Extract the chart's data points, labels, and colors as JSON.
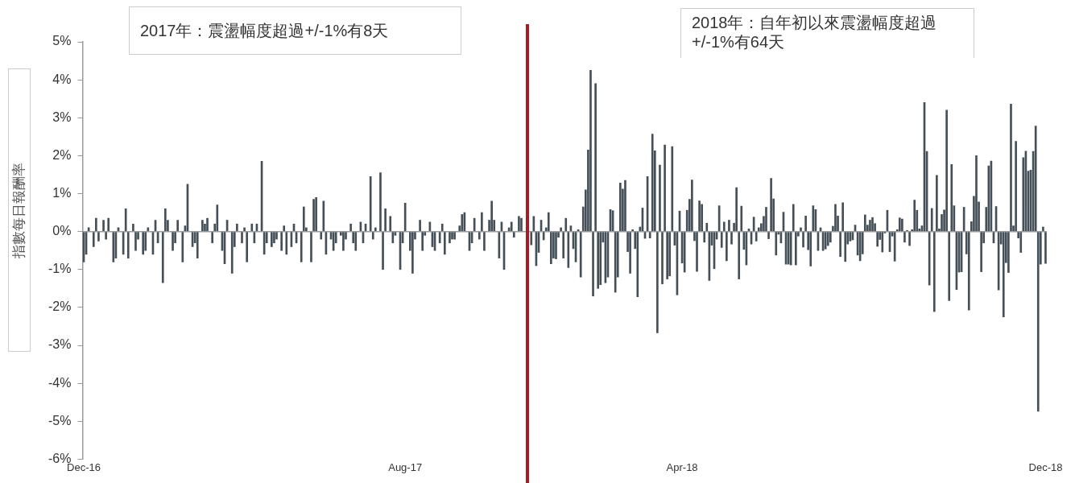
{
  "chart_data": {
    "type": "bar",
    "ylabel": "指數每日報酬率",
    "annotations": [
      "2017年：震盪幅度超過+/-1%有8天",
      "2018年：自年初以來震盪幅度超過+/-1%有64天"
    ],
    "categories": [
      "Dec-16",
      null,
      null,
      null,
      null,
      null,
      null,
      null,
      null,
      null,
      null,
      null,
      null,
      null,
      null,
      null,
      null,
      null,
      null,
      null,
      null,
      null,
      null,
      null,
      null,
      null,
      null,
      null,
      null,
      null,
      null,
      null,
      null,
      null,
      null,
      null,
      null,
      null,
      null,
      null,
      null,
      null,
      null,
      null,
      null,
      null,
      null,
      null,
      null,
      null,
      null,
      null,
      null,
      null,
      null,
      null,
      null,
      null,
      null,
      null,
      null,
      null,
      null,
      null,
      null,
      null,
      null,
      null,
      null,
      null,
      null,
      null,
      null,
      null,
      null,
      null,
      null,
      null,
      null,
      null,
      null,
      null,
      null,
      null,
      null,
      null,
      null,
      null,
      null,
      null,
      null,
      null,
      null,
      null,
      null,
      null,
      null,
      null,
      null,
      null,
      null,
      null,
      null,
      null,
      null,
      null,
      null,
      null,
      null,
      null,
      null,
      null,
      null,
      null,
      null,
      null,
      null,
      null,
      null,
      null,
      null,
      null,
      null,
      null,
      null,
      null,
      null,
      null,
      null,
      null,
      "Aug-17",
      null,
      null,
      null,
      null,
      null,
      null,
      null,
      null,
      null,
      null,
      null,
      null,
      null,
      null,
      null,
      null,
      null,
      null,
      null,
      null,
      null,
      null,
      null,
      null,
      null,
      null,
      null,
      null,
      null,
      null,
      null,
      null,
      null,
      null,
      null,
      null,
      null,
      null,
      null,
      null,
      null,
      null,
      null,
      null,
      null,
      null,
      null,
      null,
      null,
      null,
      null,
      null,
      null,
      null,
      null,
      null,
      null,
      null,
      null,
      null,
      null,
      null,
      null,
      null,
      null,
      null,
      null,
      null,
      null,
      null,
      null,
      null,
      null,
      null,
      null,
      null,
      null,
      null,
      null,
      null,
      null,
      null,
      null,
      null,
      null,
      null,
      null,
      null,
      null,
      null,
      null,
      null,
      null,
      null,
      null,
      null,
      null,
      null,
      null,
      null,
      null,
      null,
      null,
      null,
      null,
      null,
      null,
      null,
      null,
      null,
      null,
      "Apr-18",
      null,
      null,
      null,
      null,
      null,
      null,
      null,
      null,
      null,
      null,
      null,
      null,
      null,
      null,
      null,
      null,
      null,
      null,
      null,
      null,
      null,
      null,
      null,
      null,
      null,
      null,
      null,
      null,
      null,
      null,
      null,
      null,
      null,
      null,
      null,
      null,
      null,
      null,
      null,
      null,
      null,
      null,
      null,
      null,
      null,
      null,
      null,
      null,
      null,
      null,
      null,
      null,
      null,
      null,
      null,
      null,
      null,
      null,
      null,
      null,
      null,
      null,
      null,
      null,
      null,
      null,
      null,
      null,
      null,
      null,
      null,
      null,
      null,
      null,
      null,
      null,
      null,
      null,
      null,
      null,
      null,
      null,
      null,
      null,
      null,
      null,
      null,
      null,
      null,
      null,
      null,
      null,
      null,
      null,
      null,
      null,
      null,
      null,
      null,
      null,
      null,
      null,
      null,
      null,
      null,
      null,
      null,
      null,
      null,
      null,
      null,
      null,
      null,
      null,
      null,
      null,
      null,
      null,
      null,
      null,
      null,
      null,
      null,
      null,
      null,
      null,
      null,
      null,
      null,
      null,
      null,
      null,
      null,
      null,
      null,
      null,
      null,
      null,
      null,
      null,
      null,
      null,
      null,
      null,
      null,
      null,
      "Dec-18"
    ],
    "ylim": [
      -6,
      5
    ],
    "yticks": [
      {
        "value": 5,
        "label": "5%"
      },
      {
        "value": 4,
        "label": "4%"
      },
      {
        "value": 3,
        "label": "3%"
      },
      {
        "value": 2,
        "label": "2%"
      },
      {
        "value": 1,
        "label": "1%"
      },
      {
        "value": 0,
        "label": "0%"
      },
      {
        "value": -1,
        "label": "-1%"
      },
      {
        "value": -2,
        "label": "-2%"
      },
      {
        "value": -3,
        "label": "-3%"
      },
      {
        "value": -4,
        "label": "-4%"
      },
      {
        "value": -5,
        "label": "-5%"
      },
      {
        "value": -6,
        "label": "-6%"
      }
    ],
    "ref_lines": [
      {
        "axis": "y",
        "value": 0,
        "color": "#9a9a9a"
      }
    ],
    "grid": false,
    "legend": false,
    "series": [
      {
        "color": "#454f57",
        "values": [
          -0.8,
          -0.6,
          0.1,
          null,
          -0.4,
          0.35,
          -0.25,
          null,
          0.3,
          -0.2,
          0.35,
          null,
          -0.8,
          -0.7,
          0.1,
          null,
          -0.6,
          0.6,
          -0.7,
          null,
          0.2,
          -0.5,
          -0.2,
          null,
          -0.6,
          -0.5,
          0.1,
          null,
          -0.6,
          0.3,
          -0.3,
          null,
          -1.35,
          0.6,
          0.3,
          null,
          -0.5,
          -0.3,
          0.3,
          null,
          -0.8,
          0.15,
          1.25,
          null,
          -0.4,
          -0.3,
          -0.7,
          null,
          0.3,
          0.2,
          0.35,
          null,
          -0.3,
          0.2,
          0.7,
          null,
          -0.5,
          -0.85,
          0.3,
          null,
          -1.1,
          -0.4,
          0.2,
          null,
          -0.3,
          0.1,
          -0.8,
          null,
          0.2,
          -0.3,
          0.2,
          null,
          1.85,
          -0.6,
          -0.3,
          null,
          -0.4,
          -0.3,
          -0.2,
          null,
          -0.5,
          0.15,
          -0.6,
          null,
          -0.4,
          0.2,
          -0.3,
          null,
          -0.8,
          0.65,
          0.1,
          null,
          -0.8,
          0.85,
          0.9,
          null,
          -0.2,
          0.8,
          -0.6,
          null,
          -0.2,
          -0.5,
          -0.3,
          null,
          -0.1,
          -0.5,
          -0.2,
          null,
          0.2,
          -0.3,
          -0.5,
          null,
          0.25,
          -0.3,
          0.2,
          null,
          1.45,
          -0.2,
          0.1,
          null,
          1.55,
          -1.0,
          0.6,
          null,
          0.4,
          -0.3,
          -0.1,
          null,
          -1.0,
          -0.3,
          0.75,
          null,
          -0.5,
          -1.1,
          -0.2,
          null,
          0.3,
          -0.5,
          -0.1,
          null,
          0.25,
          -0.4,
          -0.5,
          null,
          -0.3,
          0.2,
          -0.6,
          null,
          -0.3,
          -0.2,
          -0.2,
          null,
          0.15,
          0.45,
          0.5,
          null,
          -0.5,
          -0.3,
          0.35,
          null,
          -0.2,
          0.5,
          -0.5,
          null,
          0.3,
          0.8,
          0.3,
          null,
          -0.7,
          0.25,
          -1.0,
          null,
          0.1,
          0.25,
          -0.15,
          null,
          0.4,
          0.35,
          null,
          null,
          null,
          -0.35,
          0.4,
          -0.9,
          -0.55,
          0.3,
          -0.22,
          0.1,
          0.5,
          -0.85,
          -0.7,
          -0.72,
          -0.15,
          0.1,
          -0.7,
          0.35,
          -0.95,
          0.15,
          -0.45,
          -0.8,
          0.05,
          -1.2,
          0.65,
          1.1,
          2.15,
          4.25,
          -1.7,
          3.9,
          -1.5,
          -1.4,
          -0.28,
          -1.35,
          -1.2,
          0.58,
          0.55,
          -1.6,
          -1.2,
          1.28,
          1.12,
          1.35,
          -0.53,
          -1.1,
          0.05,
          -0.45,
          -1.72,
          0.12,
          0.62,
          -0.18,
          1.45,
          -0.17,
          2.57,
          2.13,
          -2.67,
          1.75,
          -1.38,
          2.28,
          -1.25,
          -1.17,
          2.24,
          -0.36,
          -1.67,
          0.54,
          -0.83,
          -1.07,
          0.56,
          0.85,
          1.36,
          -0.24,
          -1.05,
          0.81,
          0.72,
          -0.28,
          0.22,
          -1.29,
          -0.36,
          -0.98,
          -0.2,
          0.68,
          -0.42,
          0.25,
          -0.77,
          0.3,
          -0.33,
          0.22,
          1.16,
          -1.25,
          0.67,
          -0.47,
          -0.88,
          0.07,
          -0.33,
          0.38,
          -0.25,
          0.1,
          0.21,
          0.4,
          0.64,
          -0.19,
          1.4,
          0.86,
          -0.62,
          -0.07,
          -0.3,
          0.51,
          -0.86,
          -0.86,
          -0.88,
          0.72,
          -0.88,
          -0.12,
          0.1,
          -0.41,
          0.41,
          -0.48,
          -0.91,
          0.68,
          0.58,
          -0.5,
          0.1,
          -0.5,
          -0.46,
          -0.37,
          -0.28,
          0.14,
          0.72,
          0.41,
          -0.66,
          0.76,
          -0.79,
          -0.33,
          -0.25,
          -0.22,
          0.17,
          -0.62,
          -0.77,
          -0.59,
          0.44,
          0.17,
          0.3,
          0.37,
          0.21,
          -0.39,
          -0.21,
          -0.54,
          -0.04,
          0.56,
          -0.53,
          -0.12,
          -0.78,
          0.05,
          0.36,
          0.33,
          -0.28,
          0.03,
          -0.37,
          0.05,
          0.83,
          0.56,
          0.07,
          0.15,
          3.4,
          2.11,
          -1.41,
          0.61,
          -2.11,
          1.48,
          0.07,
          0.45,
          0.57,
          3.2,
          -1.82,
          1.77,
          0.68,
          -1.53,
          -1.07,
          -1.06,
          0.64,
          -0.59,
          -2.07,
          0.26,
          0.93,
          2.0,
          0.78,
          -1.06,
          -0.3,
          0.64,
          1.73,
          1.86,
          -0.3,
          0.66,
          -1.54,
          -0.33,
          -2.25,
          -0.82,
          -1.08,
          3.36,
          0.15,
          2.38,
          -0.17,
          -0.55,
          1.95,
          2.12,
          1.59,
          1.62,
          2.11,
          2.78,
          -4.74,
          -0.86,
          0.12,
          -0.84
        ]
      }
    ]
  }
}
